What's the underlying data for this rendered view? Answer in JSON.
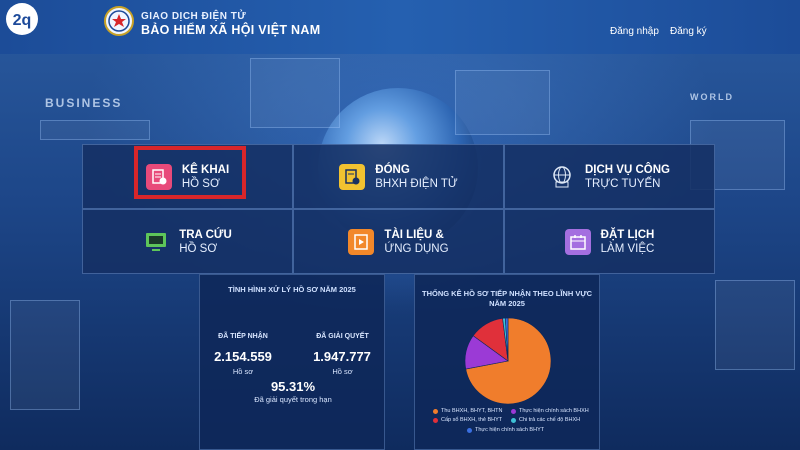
{
  "brand": {
    "logo_text": "2q"
  },
  "header": {
    "title_small": "GIAO DỊCH ĐIỆN TỬ",
    "title_big": "BẢO HIỂM XÃ HỘI VIỆT NAM",
    "nav": [
      {
        "label": "Đăng nhập"
      },
      {
        "label": "Đăng ký"
      }
    ]
  },
  "background": {
    "labels": [
      "BUSINESS",
      "WORLD"
    ]
  },
  "tiles": [
    {
      "line1": "KÊ KHAI",
      "line2": "HỒ SƠ",
      "icon": "document-edit-icon",
      "color": "#e84a7a"
    },
    {
      "line1": "ĐÓNG",
      "line2": "BHXH ĐIỆN TỬ",
      "icon": "coin-document-icon",
      "color": "#f2c230"
    },
    {
      "line1": "DỊCH VỤ CÔNG",
      "line2": "TRỰC TUYẾN",
      "icon": "globe-monitor-icon",
      "color": "#dfe9f7"
    },
    {
      "line1": "TRA CỨU",
      "line2": "HỒ SƠ",
      "icon": "monitor-search-icon",
      "color": "#5ec65a"
    },
    {
      "line1": "TÀI LIỆU &",
      "line2": "ỨNG DỤNG",
      "icon": "book-play-icon",
      "color": "#f2882a"
    },
    {
      "line1": "ĐẶT LỊCH",
      "line2": "LÀM VIỆC",
      "icon": "calendar-icon",
      "color": "#a46fe0"
    }
  ],
  "stats_panel": {
    "title": "TÌNH HÌNH XỬ LÝ HỒ SƠ NĂM 2025",
    "received_label": "ĐÃ TIẾP NHẬN",
    "received_value": "2.154.559",
    "received_unit": "Hồ sơ",
    "resolved_label": "ĐÃ GIẢI QUYẾT",
    "resolved_value": "1.947.777",
    "resolved_unit": "Hồ sơ",
    "rate_value": "95.31%",
    "rate_label": "Đã giải quyết trong hạn"
  },
  "chart_panel": {
    "title_line1": "THỐNG KÊ HỒ SƠ TIẾP NHẬN THEO LĨNH VỰC",
    "title_line2": "NĂM 2025"
  },
  "chart_data": {
    "type": "pie",
    "title": "THỐNG KÊ HỒ SƠ TIẾP NHẬN THEO LĨNH VỰC NĂM 2025",
    "slices": [
      {
        "label": "Thu BHXH, BHYT, BHTN",
        "value": 72,
        "color": "#f07d2c"
      },
      {
        "label": "Thực hiện chính sách BHXH",
        "value": 13,
        "color": "#9b3ad6"
      },
      {
        "label": "Cấp sổ BHXH, thẻ BHYT",
        "value": 13,
        "color": "#e0303a"
      },
      {
        "label": "Chi trả các chế độ BHXH",
        "value": 1,
        "color": "#3ec2d6"
      },
      {
        "label": "Thực hiện chính sách BHYT",
        "value": 1,
        "color": "#3a6fe0"
      }
    ],
    "legend_placement": "bottom"
  }
}
